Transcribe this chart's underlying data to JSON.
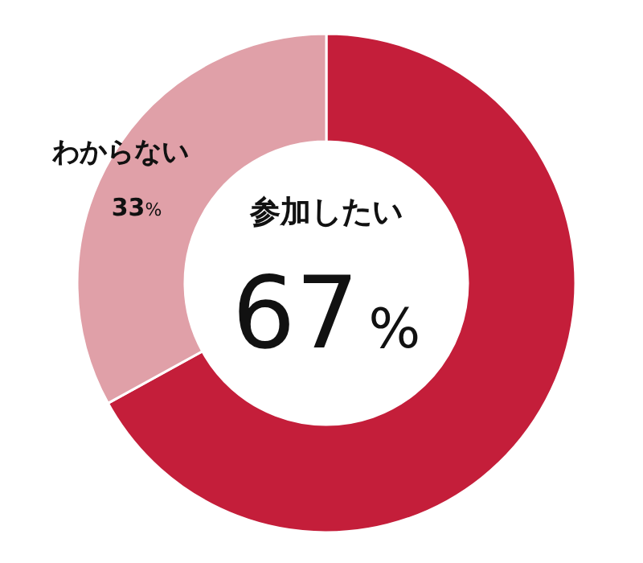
{
  "chart_data": {
    "type": "donut",
    "categories": [
      "参加したい",
      "わからない"
    ],
    "values": [
      67,
      33
    ],
    "colors": [
      "#c41e3a",
      "#e0a0a8"
    ],
    "value_labels": [
      "67%",
      "33%"
    ]
  }
}
